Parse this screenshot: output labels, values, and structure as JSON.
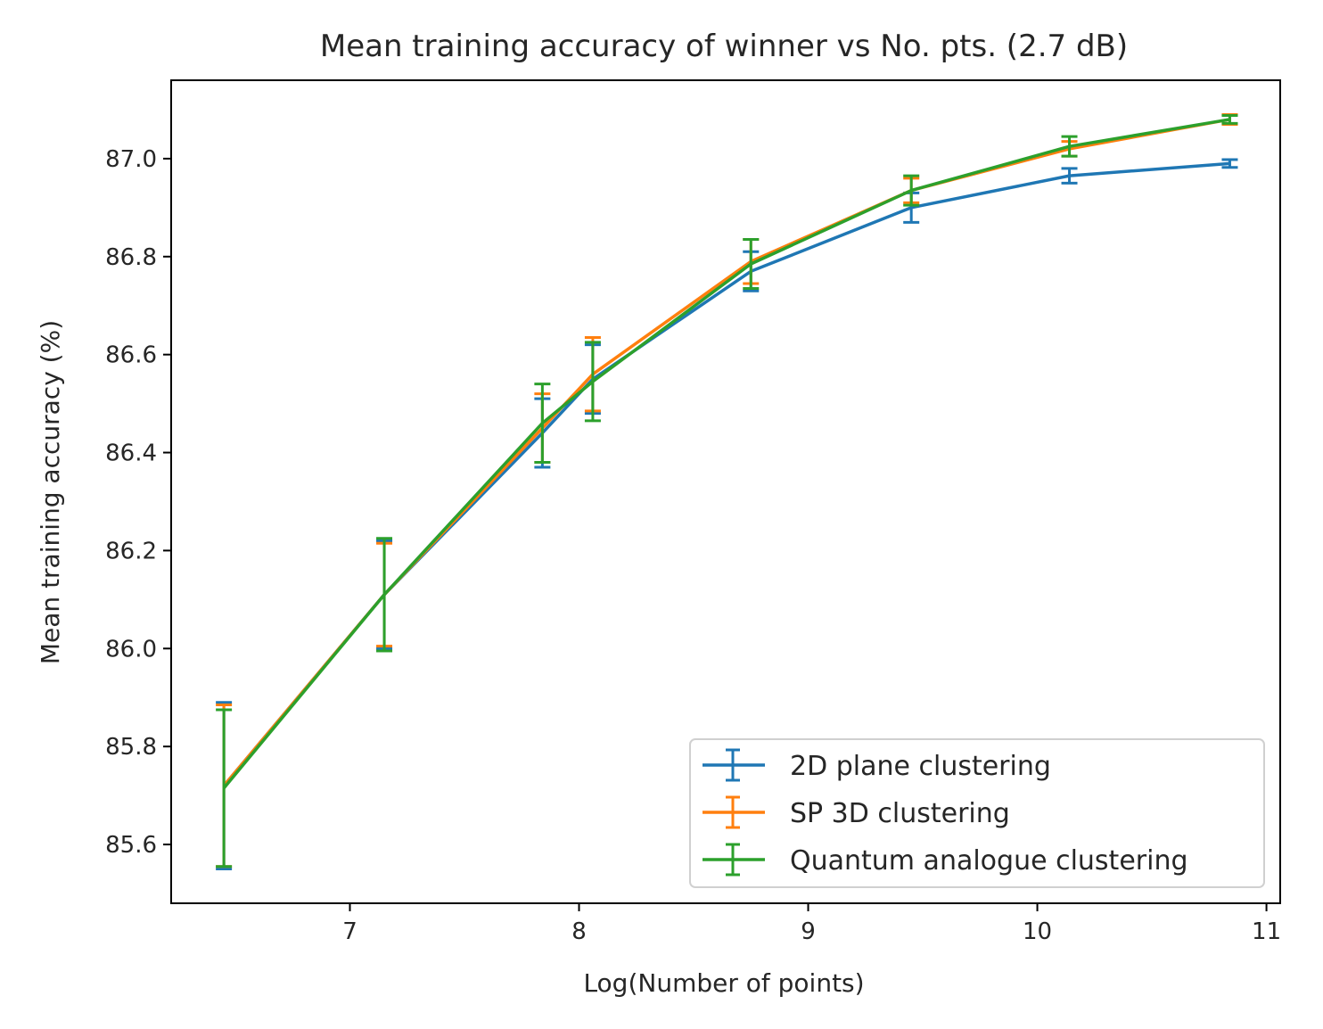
{
  "chart_data": {
    "type": "line",
    "title": "Mean training accuracy of winner vs No. pts. (2.7 dB)",
    "xlabel": "Log(Number of points)",
    "ylabel": "Mean training accuracy (%)",
    "xlim": [
      6.22,
      11.06
    ],
    "ylim": [
      85.48,
      87.16
    ],
    "x_ticks": [
      7,
      8,
      9,
      10,
      11
    ],
    "y_ticks": [
      85.6,
      85.8,
      86.0,
      86.2,
      86.4,
      86.6,
      86.8,
      87.0
    ],
    "x_tick_labels": [
      "7",
      "8",
      "9",
      "10",
      "11"
    ],
    "y_tick_labels": [
      "85.6",
      "85.8",
      "86.0",
      "86.2",
      "86.4",
      "86.6",
      "86.8",
      "87.0"
    ],
    "grid": false,
    "legend_position": "lower-right",
    "x": [
      6.45,
      7.15,
      7.84,
      8.06,
      8.75,
      9.45,
      10.14,
      10.84
    ],
    "series": [
      {
        "name": "2D plane clustering",
        "color": "#1f77b4",
        "values": [
          85.72,
          86.11,
          86.44,
          86.55,
          86.77,
          86.9,
          86.965,
          86.99
        ],
        "errors": [
          0.17,
          0.11,
          0.07,
          0.07,
          0.04,
          0.03,
          0.015,
          0.008
        ]
      },
      {
        "name": "SP 3D clustering",
        "color": "#ff7f0e",
        "values": [
          85.72,
          86.11,
          86.45,
          86.56,
          86.79,
          86.935,
          87.02,
          87.08
        ],
        "errors": [
          0.165,
          0.105,
          0.07,
          0.075,
          0.045,
          0.025,
          0.015,
          0.01
        ]
      },
      {
        "name": "Quantum analogue clustering",
        "color": "#2ca02c",
        "values": [
          85.715,
          86.11,
          86.46,
          86.545,
          86.785,
          86.935,
          87.025,
          87.08
        ],
        "errors": [
          0.16,
          0.115,
          0.08,
          0.08,
          0.05,
          0.03,
          0.02,
          0.008
        ]
      }
    ]
  }
}
